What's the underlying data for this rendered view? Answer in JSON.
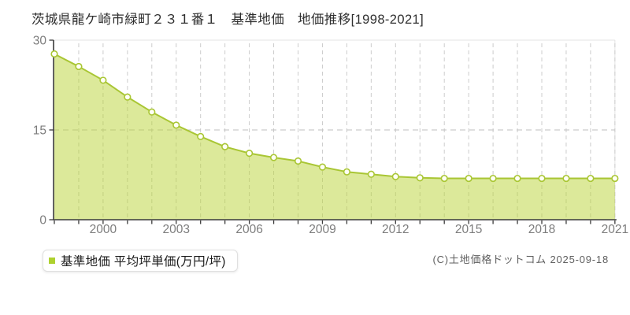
{
  "title": "茨城県龍ケ崎市緑町２３１番１　基準地価　地価推移[1998-2021]",
  "legend": {
    "label": "基準地価 平均坪単価(万円/坪)",
    "marker_color": "#aed12f"
  },
  "footer": {
    "copyright": "(C)土地価格ドットコム 2025-09-18"
  },
  "chart_data": {
    "type": "area",
    "title": "茨城県龍ケ崎市緑町２３１番１　基準地価　地価推移[1998-2021]",
    "series_name": "基準地価 平均坪単価(万円/坪)",
    "ylabel": "万円/坪",
    "x": [
      1998,
      1999,
      2000,
      2001,
      2002,
      2003,
      2004,
      2005,
      2006,
      2007,
      2008,
      2009,
      2010,
      2011,
      2012,
      2013,
      2014,
      2015,
      2016,
      2017,
      2018,
      2019,
      2020,
      2021
    ],
    "values": [
      27.7,
      25.6,
      23.3,
      20.5,
      18.0,
      15.8,
      13.9,
      12.2,
      11.1,
      10.4,
      9.8,
      8.8,
      8.0,
      7.6,
      7.2,
      7.0,
      6.9,
      6.9,
      6.9,
      6.9,
      6.9,
      6.9,
      6.9,
      6.9
    ],
    "x_tick_labels": [
      "2000",
      "2003",
      "2006",
      "2009",
      "2012",
      "2015",
      "2018",
      "2021"
    ],
    "y_ticks": [
      0,
      15,
      30
    ],
    "ylim": [
      0,
      30
    ],
    "legend_position": "bottom-left",
    "grid": {
      "vertical": "dashed per year",
      "horizontal": "dashed at 15"
    },
    "colors": {
      "area_fill": "#b9d435",
      "area_fill_opacity": "0.5",
      "line": "#a9c634",
      "marker_fill": "#fffff6",
      "marker_stroke": "#a9c634",
      "axis": "#3a3a3a",
      "gridline": "#cccccc",
      "plot_border": "#e3e3e3",
      "tick_label": "#7d7d7d"
    }
  }
}
